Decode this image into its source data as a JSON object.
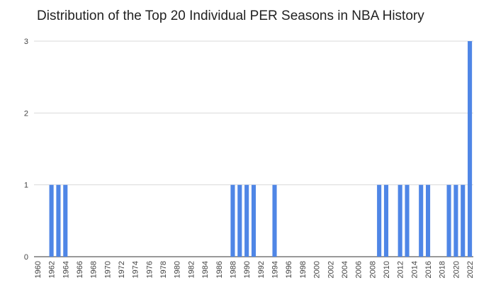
{
  "chart_data": {
    "type": "bar",
    "title": "Distribution of the Top 20 Individual PER Seasons in NBA History",
    "xlabel": "",
    "ylabel": "",
    "ylim": [
      0,
      3
    ],
    "y_ticks": [
      0,
      1,
      2,
      3
    ],
    "x_range": [
      1960,
      2022
    ],
    "x_tick_labels": [
      "1960",
      "1962",
      "1964",
      "1966",
      "1968",
      "1970",
      "1972",
      "1974",
      "1976",
      "1978",
      "1980",
      "1982",
      "1984",
      "1986",
      "1988",
      "1990",
      "1992",
      "1994",
      "1996",
      "1998",
      "2000",
      "2002",
      "2004",
      "2006",
      "2008",
      "2010",
      "2012",
      "2014",
      "2016",
      "2018",
      "2020",
      "2022"
    ],
    "bar_color": "#4f86e6",
    "grid": true,
    "x": [
      1962,
      1963,
      1964,
      1988,
      1989,
      1990,
      1991,
      1994,
      2009,
      2010,
      2012,
      2013,
      2015,
      2016,
      2019,
      2020,
      2021,
      2022
    ],
    "values": [
      1,
      1,
      1,
      1,
      1,
      1,
      1,
      1,
      1,
      1,
      1,
      1,
      1,
      1,
      1,
      1,
      1,
      3
    ]
  }
}
